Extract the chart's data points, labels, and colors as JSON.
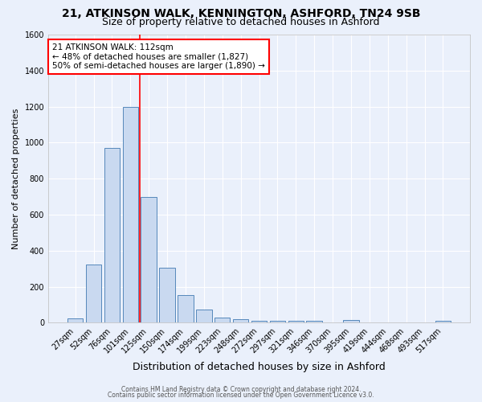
{
  "title1": "21, ATKINSON WALK, KENNINGTON, ASHFORD, TN24 9SB",
  "title2": "Size of property relative to detached houses in Ashford",
  "xlabel": "Distribution of detached houses by size in Ashford",
  "ylabel": "Number of detached properties",
  "footer1": "Contains HM Land Registry data © Crown copyright and database right 2024.",
  "footer2": "Contains public sector information licensed under the Open Government Licence v3.0.",
  "categories": [
    "27sqm",
    "52sqm",
    "76sqm",
    "101sqm",
    "125sqm",
    "150sqm",
    "174sqm",
    "199sqm",
    "223sqm",
    "248sqm",
    "272sqm",
    "297sqm",
    "321sqm",
    "346sqm",
    "370sqm",
    "395sqm",
    "419sqm",
    "444sqm",
    "468sqm",
    "493sqm",
    "517sqm"
  ],
  "values": [
    25,
    325,
    970,
    1200,
    700,
    305,
    155,
    75,
    30,
    20,
    10,
    10,
    10,
    10,
    0,
    15,
    0,
    0,
    0,
    0,
    10
  ],
  "bar_color": "#c9d9f0",
  "bar_edge_color": "#5588bb",
  "red_line_index": 3.5,
  "annotation_text": "21 ATKINSON WALK: 112sqm\n← 48% of detached houses are smaller (1,827)\n50% of semi-detached houses are larger (1,890) →",
  "annotation_box_color": "white",
  "annotation_border_color": "red",
  "property_line_color": "red",
  "ylim": [
    0,
    1600
  ],
  "yticks": [
    0,
    200,
    400,
    600,
    800,
    1000,
    1200,
    1400,
    1600
  ],
  "background_color": "#eaf0fb",
  "grid_color": "white",
  "title_fontsize": 10,
  "subtitle_fontsize": 9,
  "xlabel_fontsize": 9,
  "ylabel_fontsize": 8,
  "tick_fontsize": 7,
  "footer_fontsize": 5.5
}
